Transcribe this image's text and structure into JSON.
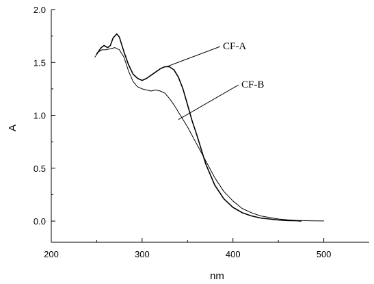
{
  "chart_data": {
    "type": "line",
    "xlabel": "nm",
    "ylabel": "A",
    "xlim": [
      200,
      550
    ],
    "ylim": [
      -0.2,
      2.0
    ],
    "xticks": [
      200,
      300,
      400,
      500
    ],
    "xtick_labels": [
      "200",
      "300",
      "400",
      "500"
    ],
    "yticks": [
      0.0,
      0.5,
      1.0,
      1.5,
      2.0
    ],
    "ytick_labels": [
      "0.0",
      "0.5",
      "1.0",
      "1.5",
      "2.0"
    ],
    "grid": false,
    "legend": "none",
    "series": [
      {
        "name": "CF-A",
        "color": "#000000",
        "x": [
          250,
          255,
          258,
          262,
          265,
          268,
          272,
          275,
          280,
          285,
          290,
          295,
          300,
          305,
          310,
          315,
          320,
          325,
          330,
          335,
          340,
          345,
          350,
          355,
          360,
          370,
          380,
          390,
          400,
          410,
          420,
          430,
          440,
          450,
          460,
          470,
          475
        ],
        "y": [
          1.58,
          1.64,
          1.66,
          1.64,
          1.66,
          1.73,
          1.77,
          1.74,
          1.6,
          1.48,
          1.39,
          1.35,
          1.33,
          1.35,
          1.38,
          1.41,
          1.44,
          1.46,
          1.46,
          1.43,
          1.36,
          1.25,
          1.1,
          0.95,
          0.82,
          0.54,
          0.34,
          0.21,
          0.13,
          0.08,
          0.05,
          0.03,
          0.02,
          0.01,
          0.005,
          0.003,
          0.0
        ]
      },
      {
        "name": "CF-B",
        "color": "#000000",
        "x": [
          248,
          252,
          256,
          260,
          265,
          270,
          275,
          280,
          285,
          290,
          295,
          300,
          305,
          310,
          315,
          320,
          325,
          330,
          335,
          340,
          350,
          360,
          370,
          380,
          390,
          400,
          410,
          420,
          430,
          440,
          450,
          460,
          470,
          480,
          490,
          500
        ],
        "y": [
          1.55,
          1.6,
          1.62,
          1.62,
          1.63,
          1.64,
          1.62,
          1.55,
          1.42,
          1.32,
          1.27,
          1.25,
          1.24,
          1.23,
          1.24,
          1.23,
          1.21,
          1.16,
          1.1,
          1.03,
          0.89,
          0.73,
          0.57,
          0.41,
          0.28,
          0.19,
          0.12,
          0.08,
          0.05,
          0.035,
          0.02,
          0.012,
          0.007,
          0.004,
          0.002,
          0.001
        ]
      }
    ],
    "annotations": [
      {
        "text": "CF-A",
        "at": [
          327,
          1.46
        ]
      },
      {
        "text": "CF-B",
        "at": [
          340,
          0.96
        ]
      }
    ]
  }
}
